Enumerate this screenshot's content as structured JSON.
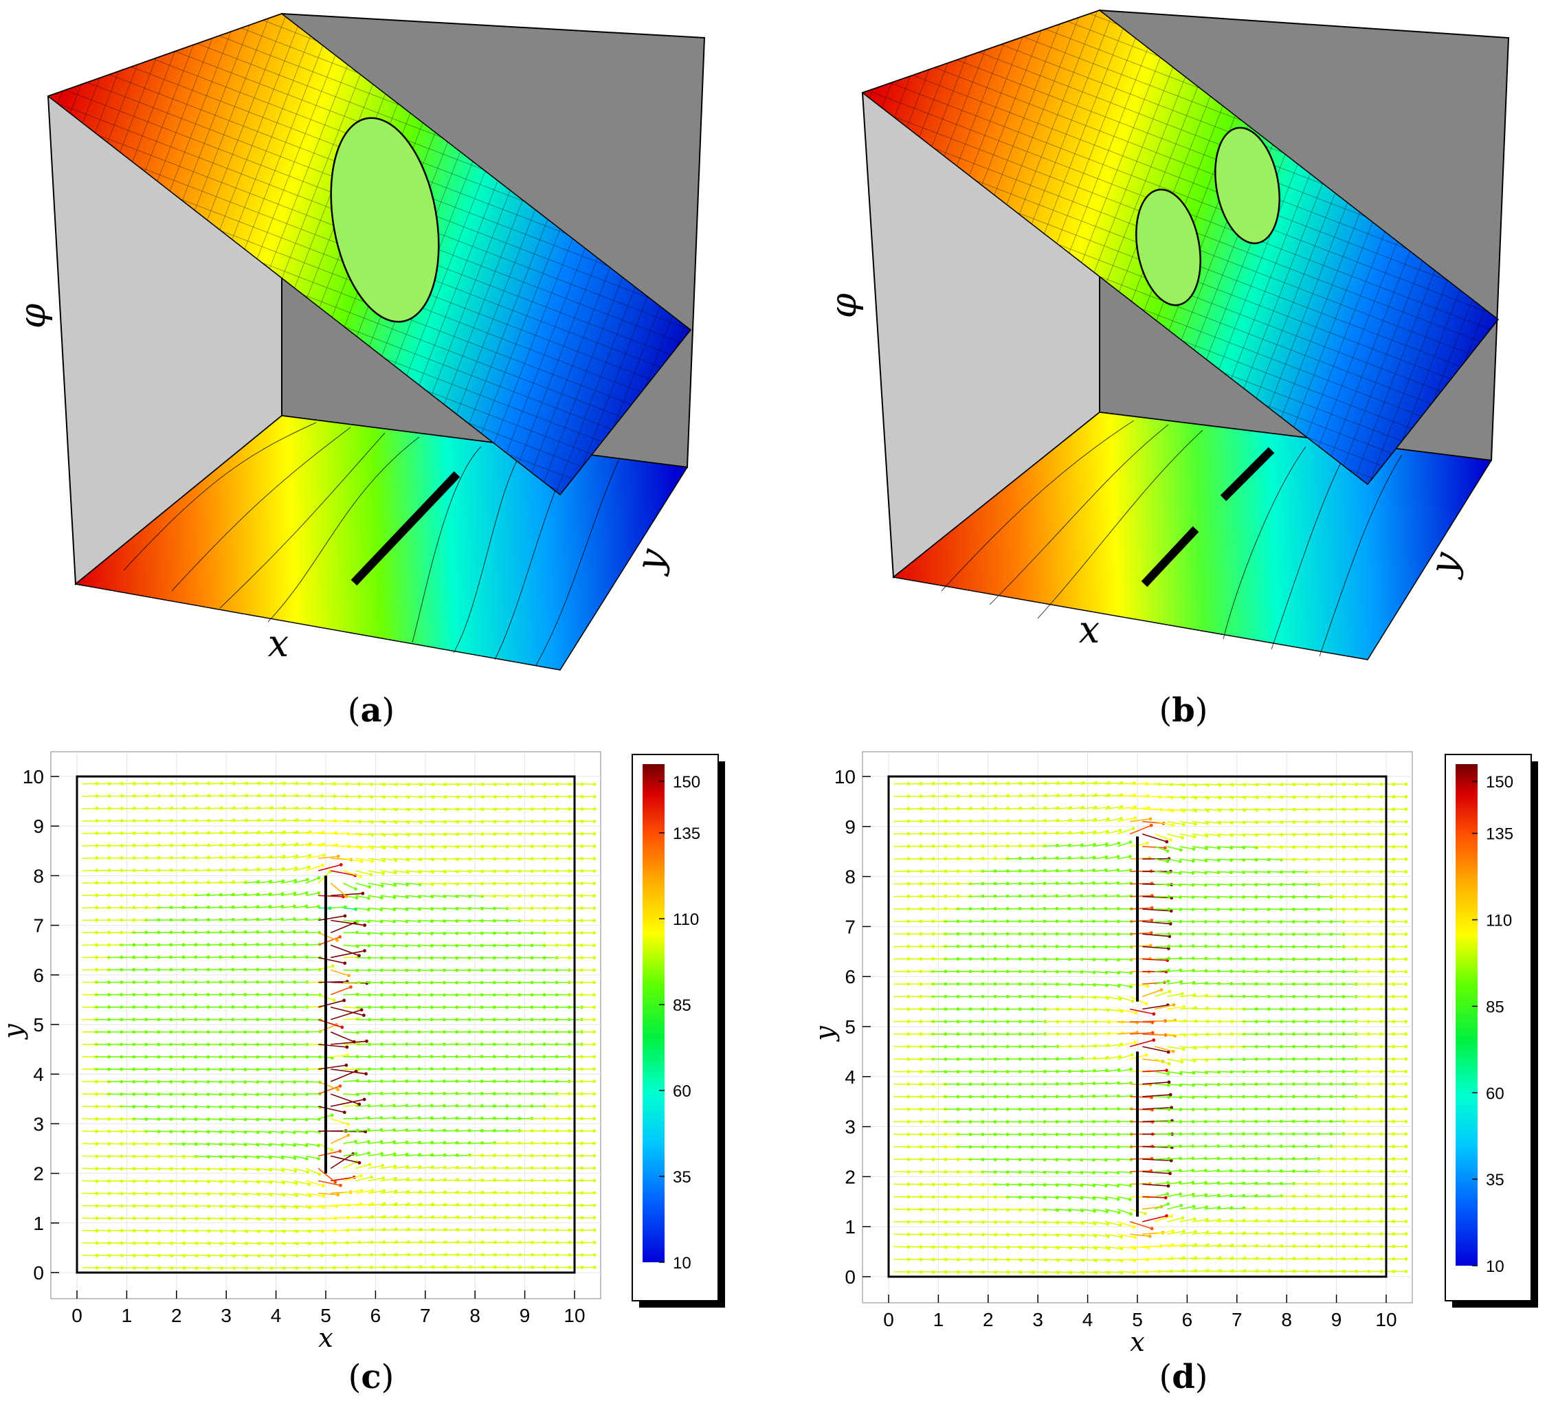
{
  "figure": {
    "panels": [
      {
        "id": "a",
        "caption": "(a)",
        "caption_letter": "a"
      },
      {
        "id": "b",
        "caption": "(b)",
        "caption_letter": "b"
      },
      {
        "id": "c",
        "caption": "(c)",
        "caption_letter": "c"
      },
      {
        "id": "d",
        "caption": "(d)",
        "caption_letter": "d"
      }
    ]
  },
  "colors": {
    "colormap": [
      "#0000d8",
      "#0050ff",
      "#00b0ff",
      "#00ffe0",
      "#00ff60",
      "#70ff00",
      "#d8ff00",
      "#ffff00",
      "#ffb000",
      "#ff5000",
      "#e00000",
      "#7a0000"
    ],
    "wall_light": "#c8c8c8",
    "wall_dark": "#858585",
    "crack": "#000000"
  },
  "chart_data": [
    {
      "panel": "a",
      "type": "surface",
      "axis_labels": {
        "x": "x",
        "y": "y",
        "z": "φ"
      },
      "cracks": [
        {
          "x": 5,
          "y_from": 2,
          "y_to": 8
        }
      ]
    },
    {
      "panel": "b",
      "type": "surface",
      "axis_labels": {
        "x": "x",
        "y": "y",
        "z": "φ"
      },
      "cracks": [
        {
          "x": 5,
          "y_from": 1.2,
          "y_to": 4.5
        },
        {
          "x": 5,
          "y_from": 5.5,
          "y_to": 8.8
        }
      ]
    },
    {
      "panel": "c",
      "type": "vector_field",
      "xlabel": "x",
      "ylabel": "y",
      "xlim": [
        0,
        10
      ],
      "ylim": [
        0,
        10
      ],
      "xticks": [
        "0",
        "1",
        "2",
        "3",
        "4",
        "5",
        "6",
        "7",
        "8",
        "9",
        "10"
      ],
      "yticks": [
        "0",
        "1",
        "2",
        "3",
        "4",
        "5",
        "6",
        "7",
        "8",
        "9",
        "10"
      ],
      "cracks": [
        {
          "x": 5,
          "y_from": 2,
          "y_to": 8
        }
      ],
      "colorbar": {
        "min": 10,
        "max": 155,
        "tick_values": [
          10,
          35,
          60,
          85,
          110,
          135,
          150
        ],
        "tick_labels": [
          "10",
          "35",
          "60",
          "85",
          "110",
          "135",
          "150"
        ]
      }
    },
    {
      "panel": "d",
      "type": "vector_field",
      "xlabel": "x",
      "ylabel": "y",
      "xlim": [
        0,
        10
      ],
      "ylim": [
        0,
        10
      ],
      "xticks": [
        "0",
        "1",
        "2",
        "3",
        "4",
        "5",
        "6",
        "7",
        "8",
        "9",
        "10"
      ],
      "yticks": [
        "0",
        "1",
        "2",
        "3",
        "4",
        "5",
        "6",
        "7",
        "8",
        "9",
        "10"
      ],
      "cracks": [
        {
          "x": 5,
          "y_from": 1.2,
          "y_to": 4.5
        },
        {
          "x": 5,
          "y_from": 5.5,
          "y_to": 8.8
        }
      ],
      "colorbar": {
        "min": 10,
        "max": 155,
        "tick_values": [
          10,
          35,
          60,
          85,
          110,
          135,
          150
        ],
        "tick_labels": [
          "10",
          "35",
          "60",
          "85",
          "110",
          "135",
          "150"
        ]
      }
    }
  ]
}
